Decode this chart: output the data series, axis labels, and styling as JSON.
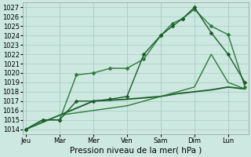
{
  "title": "",
  "xlabel": "Pression niveau de la mer( hPa )",
  "ylabel": "",
  "bg_color": "#cce8e0",
  "grid_color": "#aaccC4",
  "x_labels": [
    "Jeu",
    "Mar",
    "Mer",
    "Ven",
    "Sam",
    "Dim",
    "Lun"
  ],
  "ylim": [
    1013.5,
    1027.5
  ],
  "yticks": [
    1014,
    1015,
    1016,
    1017,
    1018,
    1019,
    1020,
    1021,
    1022,
    1023,
    1024,
    1025,
    1026,
    1027
  ],
  "xlim": [
    -0.1,
    6.6
  ],
  "series": [
    {
      "x": [
        0,
        0.5,
        1.0,
        1.5,
        2.0,
        2.5,
        3.0,
        3.5,
        4.0,
        4.35,
        4.65,
        5.0,
        5.5,
        6.0,
        6.5
      ],
      "y": [
        1014,
        1015,
        1015,
        1019.8,
        1020,
        1020.5,
        1020.5,
        1021.5,
        1024.0,
        1025.3,
        1025.8,
        1026.8,
        1025.0,
        1024.1,
        1018.5
      ],
      "color": "#2d7a3a",
      "lw": 1.0,
      "marker": "D",
      "ms": 2.5
    },
    {
      "x": [
        0,
        0.5,
        1.0,
        1.5,
        2.0,
        2.5,
        3.0,
        3.5,
        4.0,
        4.35,
        4.65,
        5.0,
        5.5,
        6.0,
        6.5
      ],
      "y": [
        1014,
        1015,
        1015,
        1017.0,
        1017.0,
        1017.2,
        1017.5,
        1022.0,
        1024.0,
        1025.0,
        1025.8,
        1027.0,
        1024.3,
        1022.0,
        1019.0
      ],
      "color": "#1a5c28",
      "lw": 1.0,
      "marker": "D",
      "ms": 2.5
    },
    {
      "x": [
        0,
        1.0,
        2.0,
        3.0,
        4.0,
        4.5,
        5.0,
        5.5,
        6.0,
        6.5
      ],
      "y": [
        1014,
        1015.5,
        1017.0,
        1017.2,
        1017.5,
        1017.8,
        1018.0,
        1018.2,
        1018.5,
        1018.3
      ],
      "color": "#1a5c28",
      "lw": 1.3,
      "marker": null,
      "ms": 0
    },
    {
      "x": [
        0,
        1.0,
        2.0,
        3.0,
        4.0,
        4.5,
        5.0,
        5.5,
        6.0,
        6.5
      ],
      "y": [
        1014,
        1015.5,
        1016.0,
        1016.5,
        1017.5,
        1018.0,
        1018.5,
        1022.0,
        1019.0,
        1018.3
      ],
      "color": "#2d7a3a",
      "lw": 1.0,
      "marker": null,
      "ms": 0
    }
  ],
  "tick_fontsize": 6.0,
  "xlabel_fontsize": 7.5
}
